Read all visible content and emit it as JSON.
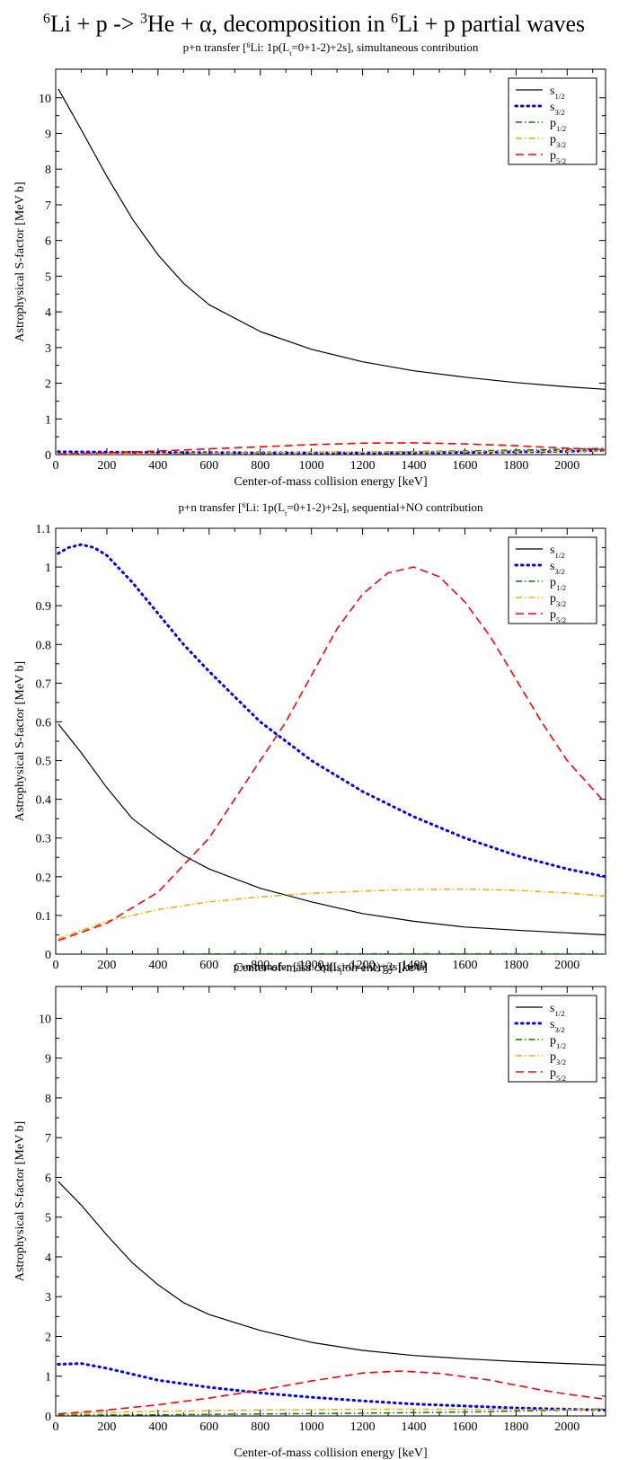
{
  "title": {
    "prefix_sup": "6",
    "part1": "Li + p -> ",
    "mid_sup": "3",
    "part2": "He + α, decomposition in ",
    "suffix_sup": "6",
    "part3": "Li + p partial waves"
  },
  "legend_names": [
    "s1/2",
    "s3/2",
    "p1/2",
    "p3/2",
    "p5/2"
  ],
  "colors": {
    "s1/2": "#000000",
    "s3/2": "#0000ff",
    "p1/2": "#008000",
    "p3/2": "#ffa500",
    "p5/2": "#ff0000"
  },
  "chart_data": [
    {
      "type": "line",
      "title": "p+n transfer [6Li: 1p(Lt=0+1-2)+2s], simultaneous contribution",
      "xlabel": "Center-of-mass collision energy [keV]",
      "ylabel": "Astrophysical S-factor [MeV b]",
      "xlim": [
        0,
        2150
      ],
      "ylim": [
        0,
        10.8
      ],
      "xticks": [
        0,
        200,
        400,
        600,
        800,
        1000,
        1200,
        1400,
        1600,
        1800,
        2000
      ],
      "yticks": [
        0,
        1,
        2,
        3,
        4,
        5,
        6,
        7,
        8,
        9,
        10
      ],
      "legend_position": "top-right",
      "series": [
        {
          "name": "s1/2",
          "x": [
            10,
            100,
            200,
            300,
            400,
            500,
            600,
            800,
            1000,
            1200,
            1400,
            1600,
            1800,
            2000,
            2150
          ],
          "y": [
            10.25,
            9.1,
            7.8,
            6.6,
            5.6,
            4.8,
            4.2,
            3.45,
            2.95,
            2.6,
            2.35,
            2.17,
            2.02,
            1.9,
            1.83
          ]
        },
        {
          "name": "s3/2",
          "x": [
            10,
            200,
            400,
            800,
            1200,
            1600,
            2000,
            2150
          ],
          "y": [
            0.08,
            0.07,
            0.06,
            0.05,
            0.05,
            0.06,
            0.09,
            0.12
          ]
        },
        {
          "name": "p1/2",
          "x": [
            10,
            400,
            800,
            1200,
            1600,
            2000,
            2150
          ],
          "y": [
            0.02,
            0.03,
            0.05,
            0.07,
            0.1,
            0.15,
            0.18
          ]
        },
        {
          "name": "p3/2",
          "x": [
            10,
            400,
            800,
            1200,
            1600,
            2000,
            2150
          ],
          "y": [
            0.01,
            0.03,
            0.05,
            0.07,
            0.08,
            0.09,
            0.1
          ]
        },
        {
          "name": "p5/2",
          "x": [
            10,
            200,
            400,
            600,
            800,
            1000,
            1200,
            1400,
            1600,
            1800,
            2000,
            2150
          ],
          "y": [
            0.02,
            0.05,
            0.1,
            0.16,
            0.22,
            0.28,
            0.32,
            0.33,
            0.3,
            0.25,
            0.18,
            0.14
          ]
        }
      ]
    },
    {
      "type": "line",
      "title": "p+n transfer [6Li: 1p(Lt=0+1-2)+2s], sequential+NO contribution",
      "xlabel": "Center-of-mass collision energy [keV]",
      "ylabel": "Astrophysical S-factor [MeV b]",
      "xlim": [
        0,
        2150
      ],
      "ylim": [
        0,
        1.1
      ],
      "xticks": [
        0,
        200,
        400,
        600,
        800,
        1000,
        1200,
        1400,
        1600,
        1800,
        2000
      ],
      "yticks": [
        0,
        0.1,
        0.2,
        0.3,
        0.4,
        0.5,
        0.6,
        0.7,
        0.8,
        0.9,
        1,
        1.1
      ],
      "legend_position": "top-right",
      "series": [
        {
          "name": "s1/2",
          "x": [
            10,
            100,
            200,
            300,
            400,
            500,
            600,
            800,
            1000,
            1200,
            1400,
            1600,
            1800,
            2000,
            2150
          ],
          "y": [
            0.595,
            0.52,
            0.43,
            0.35,
            0.3,
            0.255,
            0.22,
            0.17,
            0.135,
            0.105,
            0.085,
            0.07,
            0.062,
            0.055,
            0.05
          ]
        },
        {
          "name": "s3/2",
          "x": [
            10,
            50,
            100,
            150,
            200,
            300,
            400,
            500,
            600,
            800,
            1000,
            1200,
            1400,
            1600,
            1800,
            2000,
            2150
          ],
          "y": [
            1.035,
            1.05,
            1.058,
            1.05,
            1.03,
            0.96,
            0.88,
            0.8,
            0.73,
            0.6,
            0.5,
            0.42,
            0.355,
            0.3,
            0.255,
            0.22,
            0.2
          ]
        },
        {
          "name": "p1/2",
          "x": [
            10,
            400,
            800,
            1200,
            1600,
            2000,
            2150
          ],
          "y": [
            0.0,
            0.0,
            0.001,
            0.001,
            0.001,
            0.001,
            0.001
          ]
        },
        {
          "name": "p3/2",
          "x": [
            10,
            200,
            400,
            600,
            800,
            1000,
            1200,
            1400,
            1600,
            1800,
            2000,
            2150
          ],
          "y": [
            0.04,
            0.085,
            0.115,
            0.135,
            0.148,
            0.157,
            0.163,
            0.167,
            0.168,
            0.165,
            0.158,
            0.15
          ]
        },
        {
          "name": "p5/2",
          "x": [
            10,
            200,
            400,
            600,
            800,
            900,
            1000,
            1100,
            1200,
            1300,
            1400,
            1500,
            1600,
            1700,
            1800,
            1900,
            2000,
            2150
          ],
          "y": [
            0.035,
            0.08,
            0.16,
            0.3,
            0.5,
            0.6,
            0.72,
            0.84,
            0.93,
            0.985,
            1.0,
            0.975,
            0.91,
            0.82,
            0.71,
            0.6,
            0.5,
            0.39
          ]
        }
      ]
    },
    {
      "type": "line",
      "title": "p+n transfer [6Li: 1p(Lt=0+1-2)+2s], total",
      "xlabel": "Center-of-mass collision energy [keV]",
      "ylabel": "Astrophysical S-factor [MeV b]",
      "xlim": [
        0,
        2150
      ],
      "ylim": [
        0,
        10.8
      ],
      "xticks": [
        0,
        200,
        400,
        600,
        800,
        1000,
        1200,
        1400,
        1600,
        1800,
        2000
      ],
      "yticks": [
        0,
        1,
        2,
        3,
        4,
        5,
        6,
        7,
        8,
        9,
        10
      ],
      "legend_position": "top-right",
      "series": [
        {
          "name": "s1/2",
          "x": [
            10,
            100,
            200,
            300,
            400,
            500,
            600,
            800,
            1000,
            1200,
            1400,
            1600,
            1800,
            2000,
            2150
          ],
          "y": [
            5.9,
            5.3,
            4.55,
            3.85,
            3.3,
            2.85,
            2.55,
            2.15,
            1.85,
            1.65,
            1.52,
            1.44,
            1.37,
            1.32,
            1.28
          ]
        },
        {
          "name": "s3/2",
          "x": [
            10,
            100,
            200,
            300,
            400,
            600,
            800,
            1000,
            1200,
            1400,
            1600,
            1800,
            2000,
            2150
          ],
          "y": [
            1.3,
            1.32,
            1.2,
            1.05,
            0.9,
            0.72,
            0.58,
            0.47,
            0.38,
            0.3,
            0.25,
            0.2,
            0.17,
            0.15
          ]
        },
        {
          "name": "p1/2",
          "x": [
            10,
            400,
            800,
            1200,
            1600,
            2000,
            2150
          ],
          "y": [
            0.02,
            0.03,
            0.05,
            0.07,
            0.1,
            0.15,
            0.18
          ]
        },
        {
          "name": "p3/2",
          "x": [
            10,
            400,
            800,
            1200,
            1600,
            2000,
            2150
          ],
          "y": [
            0.05,
            0.12,
            0.15,
            0.17,
            0.17,
            0.16,
            0.15
          ]
        },
        {
          "name": "p5/2",
          "x": [
            10,
            200,
            400,
            600,
            800,
            1000,
            1200,
            1350,
            1500,
            1700,
            1900,
            2000,
            2150
          ],
          "y": [
            0.05,
            0.15,
            0.28,
            0.45,
            0.65,
            0.88,
            1.08,
            1.13,
            1.07,
            0.9,
            0.65,
            0.55,
            0.42
          ]
        }
      ]
    }
  ]
}
